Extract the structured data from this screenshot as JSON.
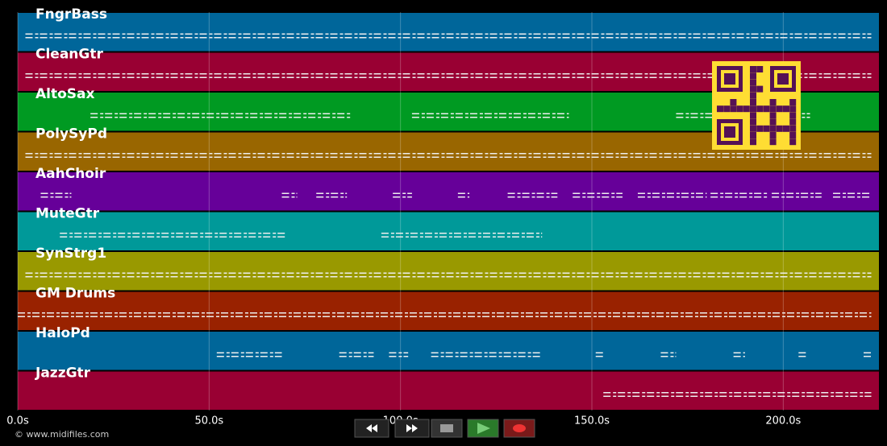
{
  "tracks": [
    {
      "name": "FngrBass",
      "color": "#00669a",
      "note_spans": [
        [
          2,
          223
        ]
      ]
    },
    {
      "name": "CleanGtr",
      "color": "#990033",
      "note_spans": [
        [
          2,
          223
        ]
      ]
    },
    {
      "name": "AltoSax",
      "color": "#009a22",
      "note_spans": [
        [
          19,
          87
        ],
        [
          103,
          144
        ],
        [
          172,
          207
        ]
      ]
    },
    {
      "name": "PolySyPd",
      "color": "#996600",
      "note_spans": [
        [
          2,
          223
        ]
      ]
    },
    {
      "name": "AahChoir",
      "color": "#660099",
      "note_spans": [
        [
          6,
          14
        ],
        [
          69,
          73
        ],
        [
          78,
          86
        ],
        [
          98,
          103
        ],
        [
          115,
          118
        ],
        [
          128,
          141
        ],
        [
          145,
          158
        ],
        [
          162,
          180
        ],
        [
          181,
          196
        ],
        [
          197,
          210
        ],
        [
          213,
          223
        ]
      ]
    },
    {
      "name": "MuteGtr",
      "color": "#009999",
      "note_spans": [
        [
          11,
          70
        ],
        [
          95,
          137
        ]
      ]
    },
    {
      "name": "SynStrg1",
      "color": "#999900",
      "note_spans": [
        [
          2,
          223
        ]
      ]
    },
    {
      "name": "GM Drums",
      "color": "#992200",
      "note_spans": [
        [
          0,
          223
        ]
      ]
    },
    {
      "name": "HaloPd",
      "color": "#006699",
      "note_spans": [
        [
          52,
          69
        ],
        [
          84,
          93
        ],
        [
          97,
          102
        ],
        [
          108,
          137
        ],
        [
          151,
          153
        ],
        [
          168,
          172
        ],
        [
          187,
          190
        ],
        [
          204,
          206
        ],
        [
          221,
          223
        ]
      ]
    },
    {
      "name": "JazzGtr",
      "color": "#990033",
      "note_spans": [
        [
          153,
          223
        ]
      ]
    }
  ],
  "xlim": [
    0,
    225
  ],
  "xticks": [
    {
      "value": 0,
      "label": "0.0s"
    },
    {
      "value": 50,
      "label": "50.0s"
    },
    {
      "value": 100,
      "label": "100.0s"
    },
    {
      "value": 150,
      "label": "150.0s"
    },
    {
      "value": 200,
      "label": "200.0s"
    }
  ],
  "footer": "© www.midifiles.com"
}
